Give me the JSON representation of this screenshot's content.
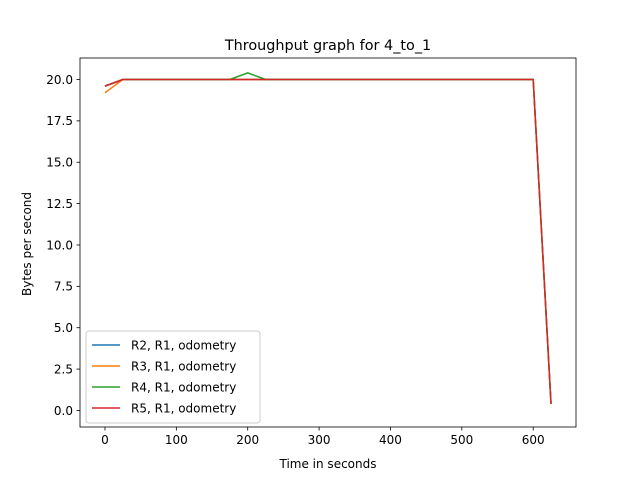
{
  "chart_data": {
    "type": "line",
    "title": "Throughput graph for 4_to_1",
    "xlabel": "Time in seconds",
    "ylabel": "Bytes per second",
    "xlim": [
      -35,
      660
    ],
    "ylim": [
      -1.0,
      21.3
    ],
    "xticks": [
      0,
      100,
      200,
      300,
      400,
      500,
      600
    ],
    "xtick_labels": [
      "0",
      "100",
      "200",
      "300",
      "400",
      "500",
      "600"
    ],
    "yticks": [
      0,
      2.5,
      5,
      7.5,
      10,
      12.5,
      15,
      17.5,
      20
    ],
    "ytick_labels": [
      "0.0",
      "2.5",
      "5.0",
      "7.5",
      "10.0",
      "12.5",
      "15.0",
      "17.5",
      "20.0"
    ],
    "grid": false,
    "legend_position": "lower-left",
    "series": [
      {
        "name": "R2, R1, odometry",
        "color": "#1f77b4",
        "points": [
          [
            0,
            19.6
          ],
          [
            25,
            20.0
          ],
          [
            600,
            20.0
          ],
          [
            625,
            0.4
          ]
        ]
      },
      {
        "name": "R3, R1, odometry",
        "color": "#ff7f0e",
        "points": [
          [
            0,
            19.2
          ],
          [
            25,
            20.0
          ],
          [
            600,
            20.0
          ],
          [
            625,
            0.4
          ]
        ]
      },
      {
        "name": "R4, R1, odometry",
        "color": "#2ca02c",
        "points": [
          [
            0,
            19.6
          ],
          [
            25,
            20.0
          ],
          [
            175,
            20.0
          ],
          [
            200,
            20.4
          ],
          [
            225,
            20.0
          ],
          [
            600,
            20.0
          ],
          [
            625,
            0.4
          ]
        ]
      },
      {
        "name": "R5, R1, odometry",
        "color": "#d62728",
        "points": [
          [
            0,
            19.6
          ],
          [
            25,
            20.0
          ],
          [
            600,
            20.0
          ],
          [
            625,
            0.4
          ]
        ]
      }
    ]
  }
}
